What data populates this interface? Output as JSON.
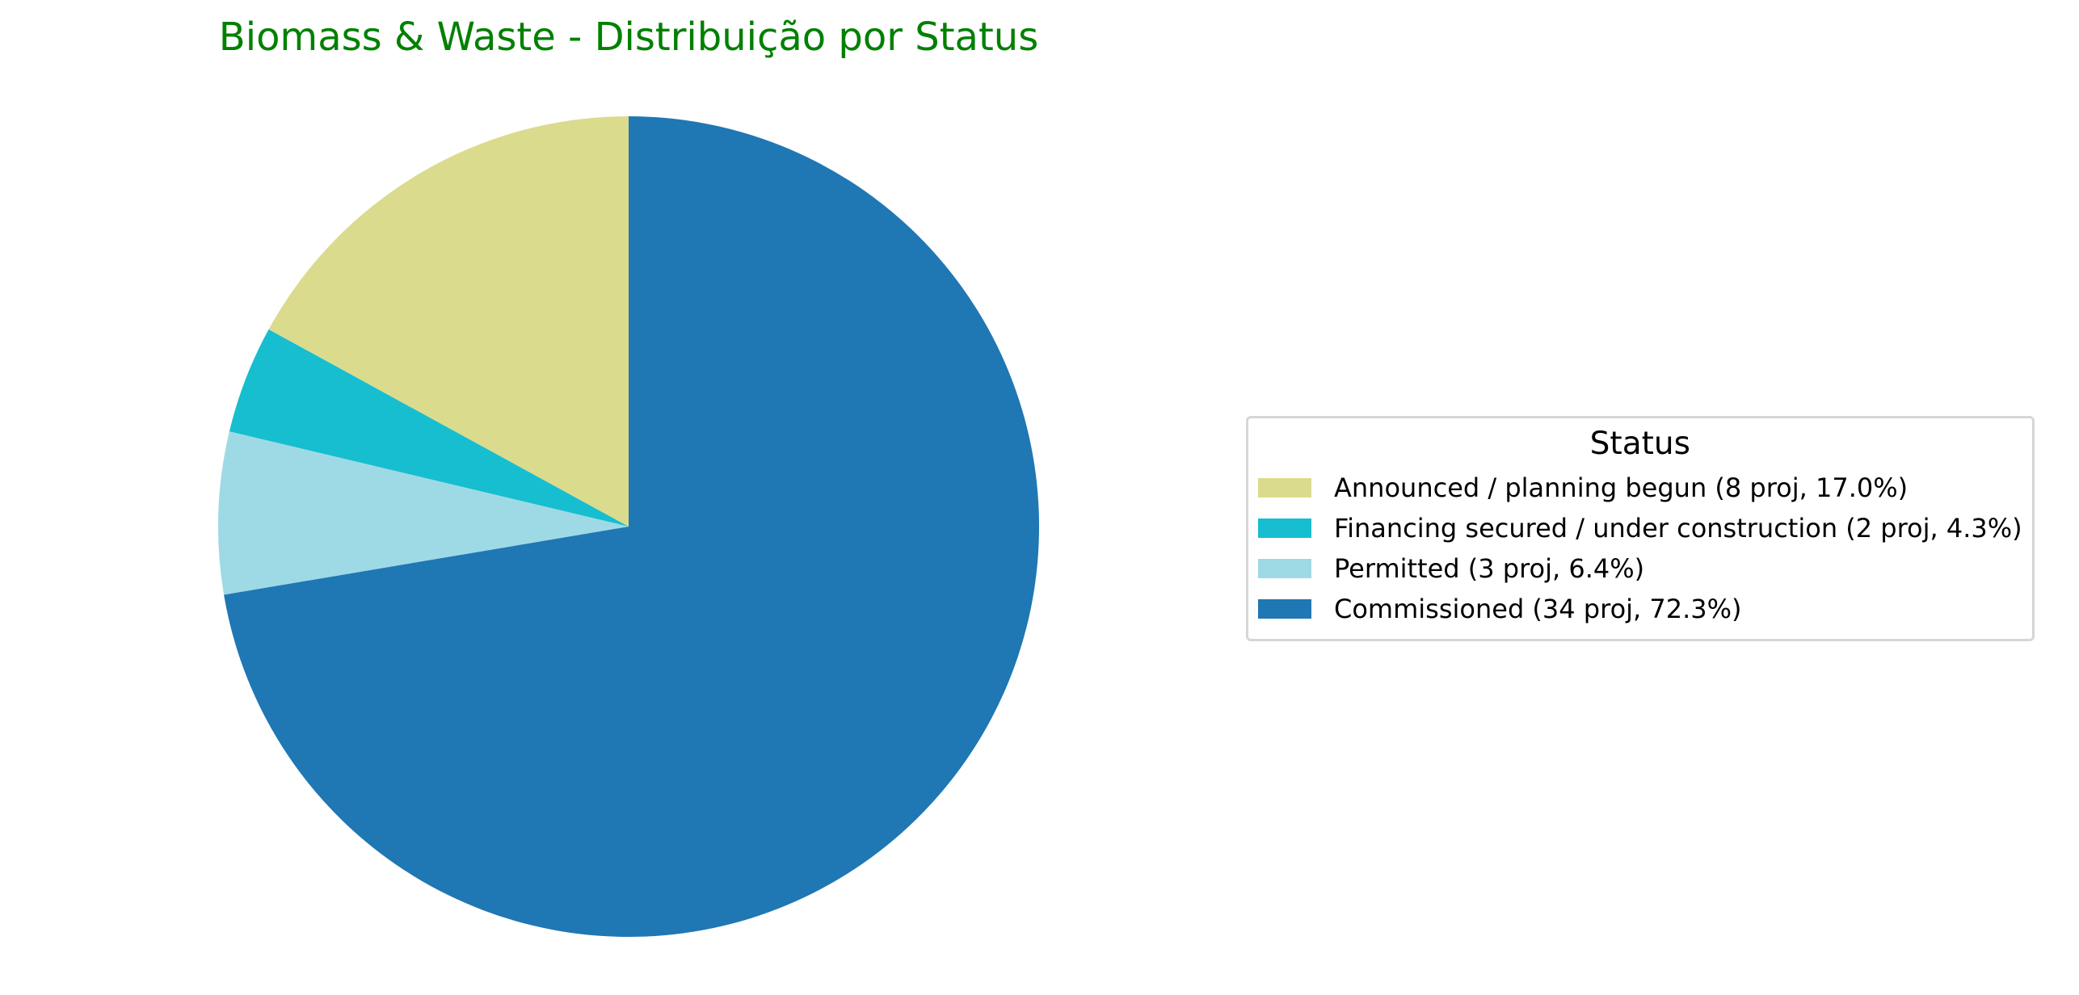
{
  "chart_data": {
    "type": "pie",
    "title": "Biomass & Waste - Distribuição por Status",
    "title_color": "#008000",
    "start_angle_deg": 90,
    "direction": "counterclockwise",
    "slices": [
      {
        "label": "Announced / planning begun (8 proj, 17.0%)",
        "count": 8,
        "percent": 17.0,
        "color": "#dbdb8d"
      },
      {
        "label": "Financing secured / under construction (2 proj, 4.3%)",
        "count": 2,
        "percent": 4.3,
        "color": "#17becf"
      },
      {
        "label": "Permitted (3 proj, 6.4%)",
        "count": 3,
        "percent": 6.4,
        "color": "#9edae5"
      },
      {
        "label": "Commissioned (34 proj, 72.3%)",
        "count": 34,
        "percent": 72.3,
        "color": "#1f77b4"
      }
    ],
    "legend": {
      "title": "Status",
      "placement": "right"
    }
  }
}
